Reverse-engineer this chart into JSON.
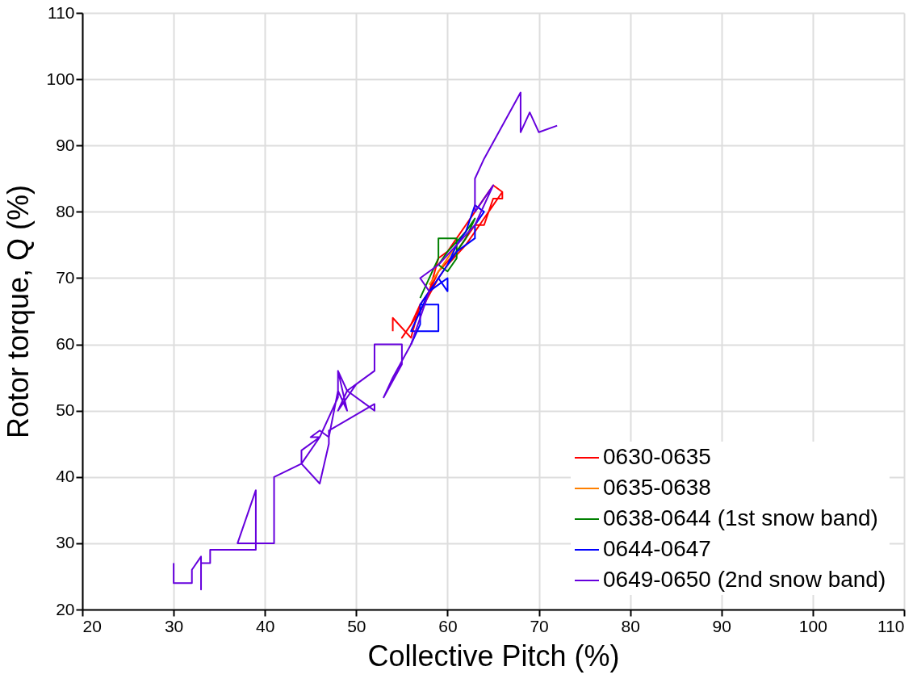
{
  "chart_data": {
    "type": "line",
    "xlabel": "Collective Pitch (%)",
    "ylabel": "Rotor torque, Q (%)",
    "xlim": [
      20,
      110
    ],
    "xticks": [
      20,
      30,
      40,
      50,
      60,
      70,
      80,
      90,
      100,
      110
    ],
    "ylim": [
      20,
      110
    ],
    "yticks": [
      20,
      30,
      40,
      50,
      60,
      70,
      80,
      90,
      100,
      110
    ],
    "grid": true,
    "legend": "bottom right",
    "marker": "none",
    "line_style": "solid",
    "series": [
      {
        "name": "0630-0635",
        "color": "#ff0000",
        "x": [
          54,
          54,
          56,
          57,
          58,
          59,
          60,
          61,
          62,
          63,
          64,
          65,
          66,
          66,
          65,
          64,
          63,
          62,
          61,
          59,
          58,
          57,
          56,
          55,
          57,
          59,
          60,
          62,
          63,
          65,
          66
        ],
        "values": [
          62,
          64,
          61,
          66,
          68,
          73,
          74,
          76,
          78,
          80,
          82,
          84,
          83,
          82,
          82,
          78,
          78,
          76,
          74,
          71,
          68,
          66,
          63,
          61,
          65,
          70,
          72,
          75,
          77,
          81,
          83
        ]
      },
      {
        "name": "0635-0638",
        "color": "#ff8000",
        "x": [
          58,
          59,
          60,
          61
        ],
        "values": [
          69,
          71,
          73,
          75
        ]
      },
      {
        "name": "0638-0644 (1st snow band)",
        "color": "#008000",
        "x": [
          57,
          58,
          59,
          59,
          61,
          61,
          60,
          59,
          60,
          62,
          63,
          62,
          61,
          60
        ],
        "values": [
          67,
          70,
          73,
          76,
          76,
          73,
          71,
          72,
          74,
          77,
          79,
          76,
          74,
          72
        ]
      },
      {
        "name": "0644-0647",
        "color": "#0000ff",
        "x": [
          56,
          57,
          57,
          59,
          59,
          56,
          57,
          58,
          59,
          60,
          60,
          59,
          60,
          61,
          62,
          63,
          63,
          64,
          63,
          62,
          61,
          60,
          59,
          58,
          57
        ],
        "values": [
          60,
          63,
          66,
          66,
          62,
          62,
          65,
          68,
          69,
          70,
          68,
          70,
          72,
          74,
          75,
          76,
          78,
          80,
          81,
          77,
          75,
          72,
          70,
          68,
          66
        ]
      },
      {
        "name": "0649-0650 (2nd snow band)",
        "color": "#6600dd",
        "x": [
          30,
          30,
          32,
          32,
          33,
          33,
          33,
          34,
          34,
          39,
          39,
          37,
          41,
          41,
          44,
          46,
          47,
          47,
          52,
          52,
          49,
          50,
          49,
          48,
          49,
          48,
          47,
          46,
          45,
          46,
          44,
          44,
          46,
          48,
          48,
          49,
          48,
          49,
          50,
          52,
          52,
          55,
          55,
          53,
          54,
          56,
          57,
          58,
          57,
          59,
          61,
          63,
          65,
          63,
          63,
          64,
          68,
          68,
          69,
          70,
          72
        ],
        "values": [
          27,
          24,
          24,
          26,
          28,
          23,
          27,
          27,
          29,
          29,
          38,
          30,
          30,
          40,
          42,
          39,
          45,
          47,
          51,
          50,
          53,
          54,
          53,
          56,
          50,
          53,
          46,
          47,
          46,
          46,
          44,
          42,
          46,
          52,
          56,
          53,
          50,
          52,
          54,
          56,
          60,
          60,
          57,
          52,
          55,
          60,
          64,
          68,
          70,
          72,
          75,
          78,
          84,
          80,
          85,
          88,
          98,
          92,
          95,
          92,
          93
        ]
      }
    ]
  }
}
